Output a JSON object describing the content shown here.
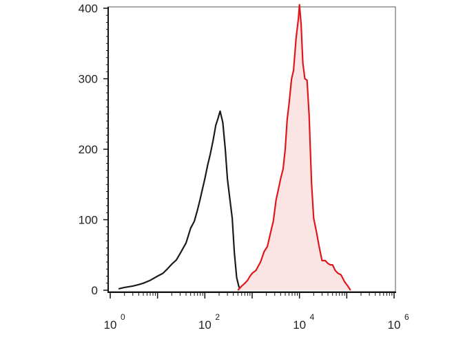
{
  "chart_data": {
    "type": "area",
    "title": "",
    "xlabel": "",
    "ylabel": "",
    "x_scale": "log10",
    "xlim": [
      1,
      1000000
    ],
    "ylim": [
      0,
      400
    ],
    "grid": false,
    "y_ticks": [
      {
        "value": 0,
        "label": "0"
      },
      {
        "value": 100,
        "label": "100"
      },
      {
        "value": 200,
        "label": "200"
      },
      {
        "value": 300,
        "label": "300"
      },
      {
        "value": 400,
        "label": "400"
      }
    ],
    "x_ticks": [
      {
        "value": 1,
        "base": "10",
        "exp": "0"
      },
      {
        "value": 100,
        "base": "10",
        "exp": "2"
      },
      {
        "value": 10000,
        "base": "10",
        "exp": "4"
      },
      {
        "value": 1000000,
        "base": "10",
        "exp": "6"
      }
    ],
    "series": [
      {
        "color": "#1a1a1a",
        "fill": "none",
        "x": [
          1.5,
          2,
          3,
          4,
          5,
          7,
          10,
          13,
          16,
          20,
          25,
          30,
          40,
          50,
          60,
          70,
          80,
          90,
          100,
          115,
          130,
          150,
          170,
          190,
          210,
          240,
          270,
          300,
          340,
          380,
          420,
          470,
          520,
          560
        ],
        "y": [
          2,
          4,
          6,
          8,
          10,
          14,
          20,
          24,
          30,
          37,
          43,
          52,
          67,
          88,
          98,
          114,
          130,
          145,
          158,
          178,
          193,
          213,
          234,
          244,
          254,
          238,
          200,
          158,
          128,
          102,
          54,
          18,
          6,
          0
        ]
      },
      {
        "color": "#e0161b",
        "fill": "#fbe4e4",
        "x": [
          500,
          600,
          700,
          800,
          900,
          1000,
          1200,
          1500,
          1800,
          2100,
          2500,
          2800,
          3200,
          3500,
          4000,
          4500,
          5000,
          5500,
          6000,
          6800,
          7500,
          8500,
          9500,
          10000,
          10800,
          11800,
          13000,
          14500,
          16000,
          18000,
          20000,
          23000,
          26000,
          30000,
          35000,
          40000,
          45000,
          50000,
          57000,
          65000,
          75000,
          90000,
          105000,
          120000
        ],
        "y": [
          0,
          6,
          10,
          14,
          20,
          24,
          28,
          40,
          55,
          62,
          84,
          98,
          128,
          140,
          158,
          172,
          200,
          242,
          263,
          300,
          312,
          358,
          385,
          405,
          378,
          322,
          300,
          298,
          248,
          152,
          102,
          82,
          62,
          42,
          42,
          38,
          36,
          36,
          28,
          24,
          22,
          12,
          6,
          0
        ]
      }
    ]
  }
}
